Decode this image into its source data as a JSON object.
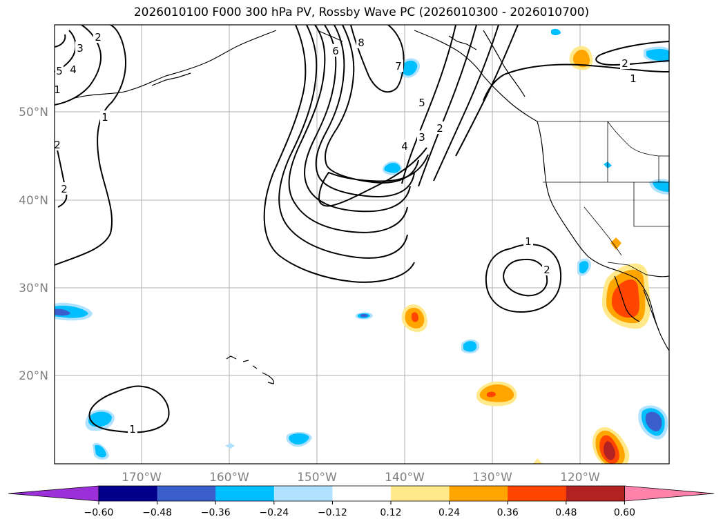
{
  "title": "2026010100 F000 300 hPa PV, Rossby Wave PC (2026010300 - 2026010700)",
  "lat_ticks": [
    "50°N",
    "40°N",
    "30°N",
    "20°N"
  ],
  "lon_ticks": [
    "170°W",
    "160°W",
    "150°W",
    "140°W",
    "130°W",
    "120°W"
  ],
  "colorbar": {
    "levels": [
      "−0.60",
      "−0.48",
      "−0.36",
      "−0.24",
      "−0.12",
      "0.12",
      "0.24",
      "0.36",
      "0.48",
      "0.60"
    ],
    "colors": [
      "#9b30d9",
      "#00008b",
      "#3a5fcd",
      "#00bfff",
      "#b0e2ff",
      "#ffffff",
      "#ffe98a",
      "#ffa500",
      "#ff4500",
      "#b22222",
      "#ff82ab"
    ]
  },
  "contour_labels": [
    "2",
    "3",
    "4",
    "5",
    "1",
    "2",
    "6",
    "8",
    "7",
    "5",
    "4",
    "3",
    "2",
    "1",
    "2",
    "1",
    "2",
    "1",
    "2",
    "1"
  ]
}
